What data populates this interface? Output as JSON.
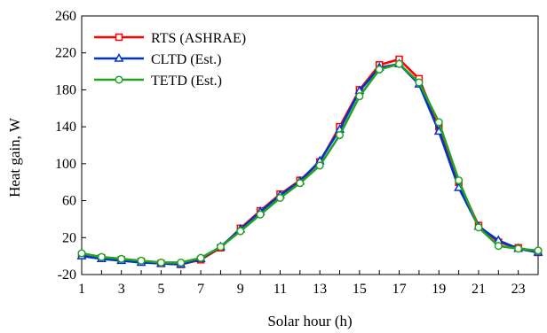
{
  "chart_data": {
    "type": "line",
    "title": "",
    "xlabel": "Solar hour (h)",
    "ylabel": "Heat gain, W",
    "xlim": [
      1,
      24
    ],
    "ylim": [
      -20,
      260
    ],
    "xticks": [
      1,
      3,
      5,
      7,
      9,
      11,
      13,
      15,
      17,
      19,
      21,
      23
    ],
    "yticks": [
      -20,
      20,
      60,
      100,
      140,
      180,
      220,
      260
    ],
    "grid": false,
    "legend_position": "top-left",
    "x": [
      1,
      2,
      3,
      4,
      5,
      6,
      7,
      8,
      9,
      10,
      11,
      12,
      13,
      14,
      15,
      16,
      17,
      18,
      19,
      20,
      21,
      22,
      23,
      24
    ],
    "series": [
      {
        "name": "RTS (ASHRAE)",
        "color": "#ff0000",
        "marker": "square",
        "values": [
          1,
          -2,
          -4,
          -6,
          -8,
          -9,
          -4,
          9,
          30,
          49,
          67,
          82,
          102,
          140,
          180,
          207,
          213,
          192,
          140,
          80,
          33,
          15,
          9,
          4
        ]
      },
      {
        "name": "CLTD (Est.)",
        "color": "#0033cc",
        "marker": "triangle",
        "values": [
          0,
          -3,
          -5,
          -7,
          -8,
          -9,
          -3,
          10,
          29,
          48,
          66,
          81,
          103,
          137,
          179,
          204,
          208,
          186,
          135,
          74,
          32,
          17,
          8,
          4
        ]
      },
      {
        "name": "TETD (Est.)",
        "color": "#22a322",
        "marker": "circle",
        "values": [
          3,
          -1,
          -3,
          -5,
          -7,
          -7,
          -2,
          10,
          27,
          45,
          63,
          79,
          98,
          131,
          173,
          202,
          208,
          188,
          145,
          82,
          31,
          11,
          8,
          6
        ]
      }
    ]
  }
}
